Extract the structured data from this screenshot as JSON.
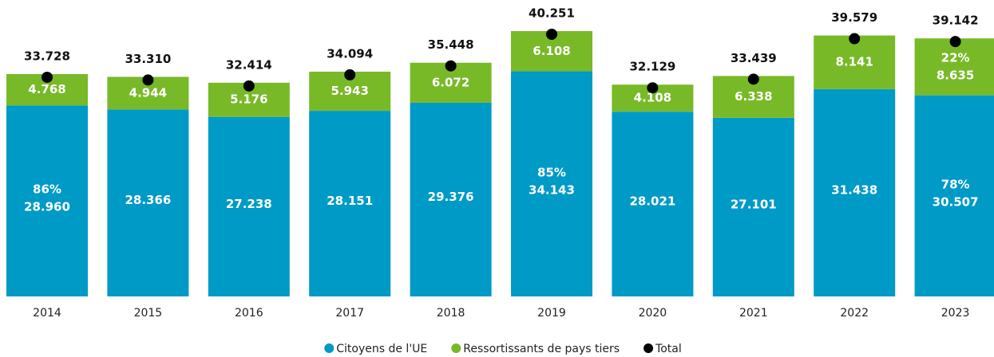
{
  "chart_data": {
    "type": "bar",
    "stacked": true,
    "categories": [
      "2014",
      "2015",
      "2016",
      "2017",
      "2018",
      "2019",
      "2020",
      "2021",
      "2022",
      "2023"
    ],
    "series": [
      {
        "name": "Citoyens de l'UE",
        "color": "#009ac7",
        "values": [
          28960,
          28366,
          27238,
          28151,
          29376,
          34143,
          28021,
          27101,
          31438,
          30507
        ],
        "value_labels": [
          "28.960",
          "28.366",
          "27.238",
          "28.151",
          "29.376",
          "34.143",
          "28.021",
          "27.101",
          "31.438",
          "30.507"
        ],
        "percent_labels": [
          "86%",
          null,
          null,
          null,
          null,
          "85%",
          null,
          null,
          null,
          "78%"
        ]
      },
      {
        "name": "Ressortissants de pays tiers",
        "color": "#78b928",
        "values": [
          4768,
          4944,
          5176,
          5943,
          6072,
          6108,
          4108,
          6338,
          8141,
          8635
        ],
        "value_labels": [
          "4.768",
          "4.944",
          "5.176",
          "5.943",
          "6.072",
          "6.108",
          "4.108",
          "6.338",
          "8.141",
          "8.635"
        ],
        "percent_labels": [
          null,
          null,
          null,
          null,
          null,
          null,
          null,
          null,
          null,
          "22%"
        ]
      }
    ],
    "total": {
      "name": "Total",
      "color": "#000000",
      "values": [
        33728,
        33310,
        32414,
        34094,
        35448,
        40251,
        32129,
        33439,
        39579,
        39142
      ],
      "value_labels": [
        "33.728",
        "33.310",
        "32.414",
        "34.094",
        "35.448",
        "40.251",
        "32.129",
        "33.439",
        "39.579",
        "39.142"
      ]
    }
  }
}
